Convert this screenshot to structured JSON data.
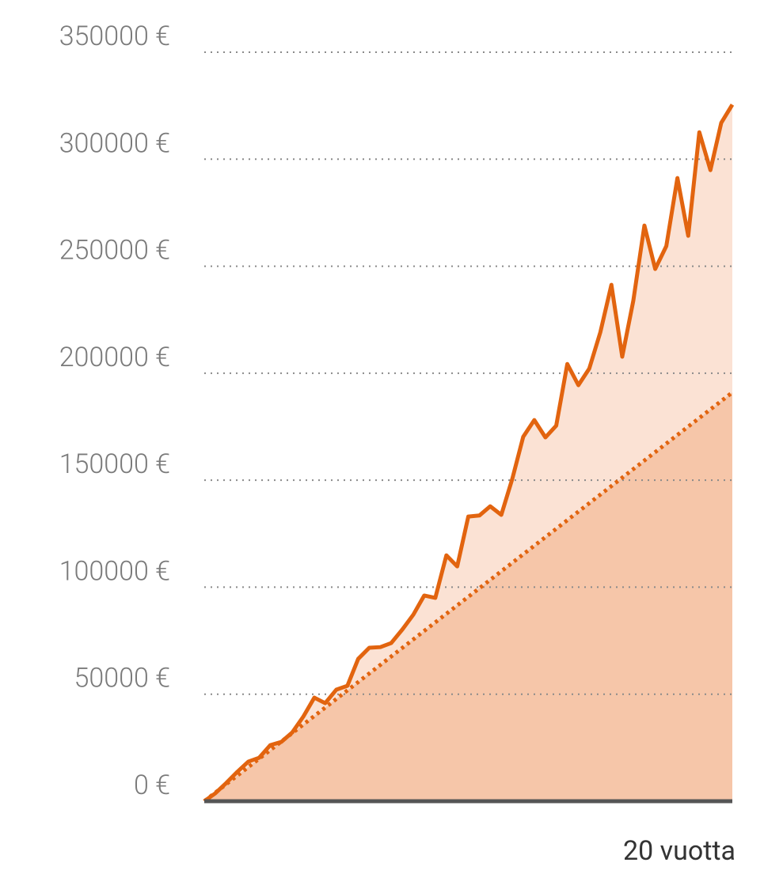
{
  "chart_data": {
    "type": "area-line",
    "ylim": [
      0,
      350000
    ],
    "yticks": [
      {
        "value": 0,
        "label": "0 €"
      },
      {
        "value": 50000,
        "label": "50000 €"
      },
      {
        "value": 100000,
        "label": "100000 €"
      },
      {
        "value": 150000,
        "label": "150000 €"
      },
      {
        "value": 200000,
        "label": "200000 €"
      },
      {
        "value": 250000,
        "label": "250000 €"
      },
      {
        "value": 300000,
        "label": "300000 €"
      },
      {
        "value": 350000,
        "label": "350000 €"
      }
    ],
    "xlim": [
      0,
      20
    ],
    "xticks": [
      {
        "value": 20,
        "label": "20 vuotta"
      }
    ],
    "grid": true,
    "series": [
      {
        "color": "#e2640f",
        "fill": "#fbe2d4",
        "style": "solid",
        "x": [
          0,
          0.42,
          0.83,
          1.25,
          1.67,
          2.08,
          2.5,
          2.92,
          3.33,
          3.75,
          4.17,
          4.58,
          5,
          5.42,
          5.83,
          6.25,
          6.67,
          7.08,
          7.5,
          7.92,
          8.33,
          8.75,
          9.17,
          9.58,
          10,
          10.42,
          10.83,
          11.25,
          11.67,
          12.08,
          12.5,
          12.92,
          13.33,
          13.75,
          14.17,
          14.58,
          15,
          15.42,
          15.83,
          16.25,
          16.67,
          17.08,
          17.5,
          17.92,
          18.33,
          18.75,
          19.17,
          19.58,
          20
        ],
        "values": [
          0,
          3700,
          8500,
          13700,
          18500,
          20300,
          26200,
          27700,
          32100,
          39500,
          48400,
          45800,
          52100,
          53900,
          66500,
          71700,
          72000,
          73900,
          80200,
          87200,
          96100,
          95000,
          114900,
          109700,
          133000,
          133500,
          137800,
          133800,
          150800,
          170300,
          178100,
          170000,
          175500,
          204300,
          194400,
          202100,
          219100,
          241300,
          207700,
          233900,
          269000,
          248700,
          259400,
          291200,
          264200,
          312600,
          294900,
          317000,
          325500
        ]
      },
      {
        "color": "#e2640f",
        "fill": "#f6c6a9",
        "style": "dotted",
        "x": [
          0,
          20
        ],
        "values": [
          0,
          191000
        ]
      }
    ]
  }
}
